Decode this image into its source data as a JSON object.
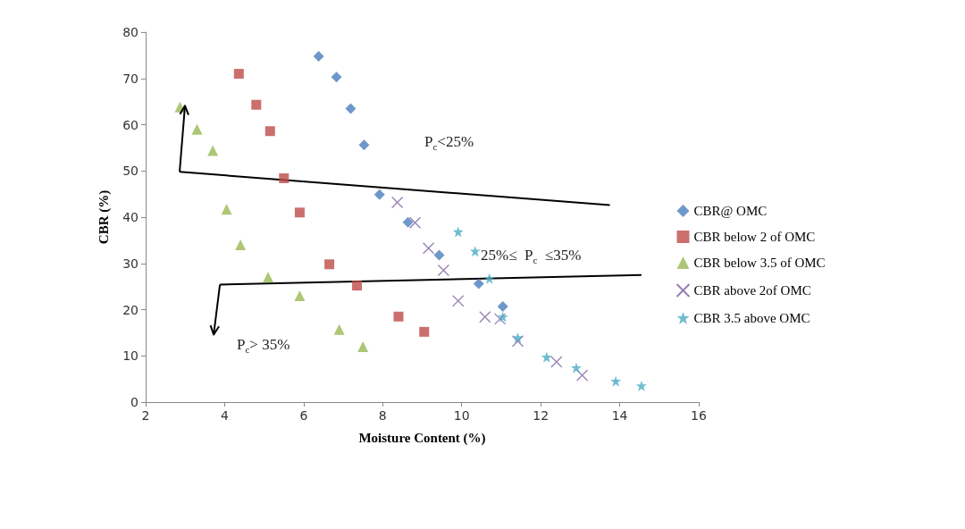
{
  "chart_data": {
    "type": "scatter",
    "xlabel": "Moisture Content (%)",
    "ylabel": "CBR (%)",
    "xlim": [
      2,
      16
    ],
    "xticks": [
      2,
      4,
      6,
      8,
      10,
      12,
      14,
      16
    ],
    "ylim": [
      0,
      80
    ],
    "yticks": [
      0,
      10,
      20,
      30,
      40,
      50,
      60,
      70,
      80
    ],
    "grid": false,
    "legend": "right",
    "annotations": [
      "P$_{c}$<25%",
      "25%≤  P$_{c}$  ≤35%",
      "P$_{c}$> 35%"
    ],
    "series": [
      {
        "name": "CBR@ OMC",
        "color": "#4a7ebb",
        "marker": "diamond",
        "x": [
          6.38,
          6.83,
          7.19,
          7.53,
          7.92,
          8.64,
          9.43,
          10.43,
          11.04
        ],
        "values": [
          74.8,
          70.3,
          63.5,
          55.6,
          44.9,
          38.9,
          31.8,
          25.6,
          20.7
        ]
      },
      {
        "name": "CBR below 2 of OMC",
        "color": "#be4b48",
        "marker": "square",
        "x": [
          4.36,
          4.8,
          5.15,
          5.5,
          5.9,
          6.65,
          7.35,
          8.4,
          9.05
        ],
        "values": [
          71,
          64.3,
          58.6,
          48.4,
          41,
          29.8,
          25.2,
          18.5,
          15.2
        ]
      },
      {
        "name": "CBR below 3.5 of OMC",
        "color": "#98b954",
        "marker": "triangle",
        "x": [
          2.87,
          3.3,
          3.7,
          4.05,
          4.4,
          5.1,
          5.9,
          6.9,
          7.5
        ],
        "values": [
          63.8,
          59,
          54.4,
          41.7,
          34,
          27,
          23,
          15.7,
          12
        ]
      },
      {
        "name": "CBR above 2of OMC",
        "color": "#7d60a0",
        "marker": "cross",
        "x": [
          8.37,
          8.82,
          9.16,
          9.54,
          9.91,
          10.59,
          10.97,
          11.42,
          12.4,
          13.05
        ],
        "values": [
          43.2,
          38.8,
          33.3,
          28.5,
          21.9,
          18.4,
          18,
          13.2,
          8.7,
          5.8
        ]
      },
      {
        "name": "CBR 3.5 above OMC",
        "color": "#4bacc6",
        "marker": "star",
        "x": [
          9.91,
          10.34,
          10.7,
          11.04,
          11.42,
          12.15,
          12.9,
          13.9,
          14.55
        ],
        "values": [
          36.8,
          32.6,
          26.7,
          18.4,
          13.9,
          9.7,
          7.4,
          4.5,
          3.5
        ]
      },
      {
        "type": "line",
        "color": "#000000",
        "marker": "none",
        "x": [
          2.86,
          13.75
        ],
        "values": [
          49.8,
          42.6
        ]
      },
      {
        "type": "line",
        "color": "#000000",
        "marker": "none",
        "x": [
          3.88,
          14.55
        ],
        "values": [
          25.4,
          27.5
        ]
      }
    ]
  }
}
